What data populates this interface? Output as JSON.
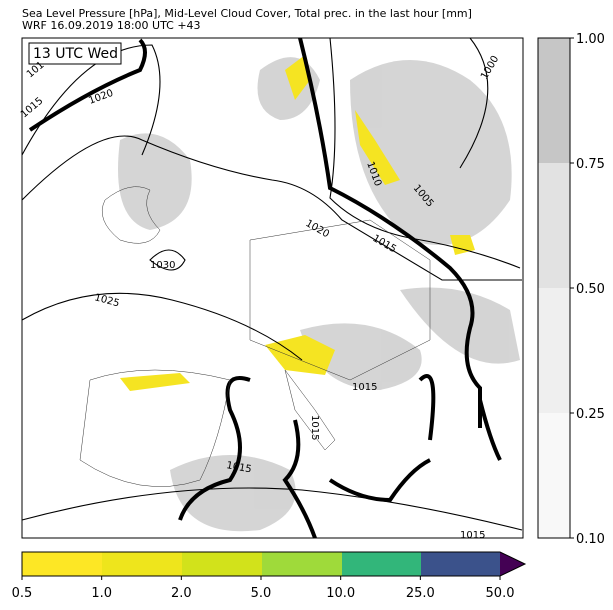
{
  "header": {
    "line1": "Sea Level Pressure [hPa], Mid-Level Cloud Cover, Total prec. in the last hour [mm]",
    "line2": "WRF 16.09.2019 18:00 UTC +43"
  },
  "time_label": "13 UTC Wed",
  "contour_labels": [
    "101",
    "1015",
    "1020",
    "1030",
    "1025",
    "1020",
    "1015",
    "1010",
    "1005",
    "1000",
    "1015",
    "1015",
    "1015",
    "1015"
  ],
  "cloud_colorbar": {
    "ticks": [
      "0.10",
      "0.25",
      "0.50",
      "0.75",
      "1.00"
    ]
  },
  "precip_colorbar": {
    "ticks": [
      "0.5",
      "1.0",
      "2.0",
      "5.0",
      "10.0",
      "25.0",
      "50.0"
    ]
  }
}
